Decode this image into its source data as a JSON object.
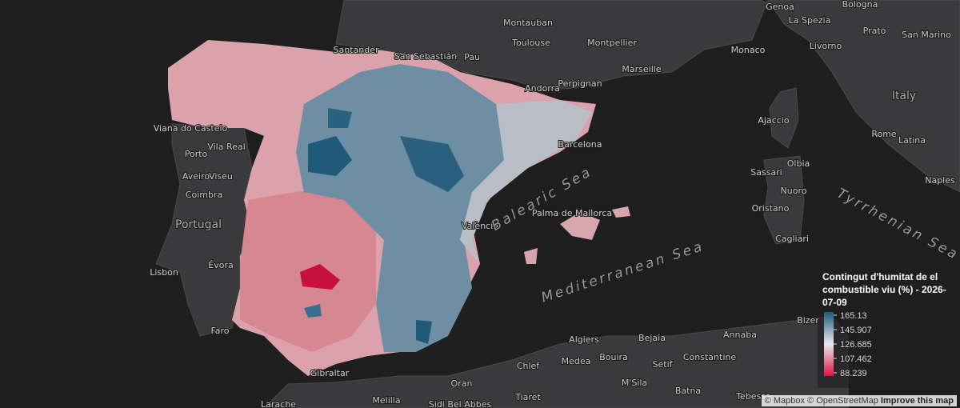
{
  "map": {
    "places": [
      "Genoa",
      "La Spezia",
      "Bologna",
      "Prato",
      "San Marino",
      "Livorno",
      "Monaco",
      "Montauban",
      "Toulouse",
      "Montpellier",
      "Marseille",
      "Perpignan",
      "Pau",
      "Santander",
      "San Sebastián",
      "Andorra",
      "Italy",
      "Ajaccio",
      "Rome",
      "Latina",
      "Barcelona",
      "Viana do Castelo",
      "Porto",
      "Vila Real",
      "Aveiro",
      "Viseu",
      "Coimbra",
      "Portugal",
      "Lisbon",
      "Évora",
      "Faro",
      "Gibraltar",
      "Sassari",
      "Olbia",
      "Nuoro",
      "Oristano",
      "Cagliari",
      "Naples",
      "Palma de Mallorca",
      "València",
      "Algiers",
      "Bejaia",
      "Annaba",
      "Bizer",
      "Medea",
      "Bouira",
      "Chlef",
      "Setif",
      "Constantine",
      "M'Sila",
      "Batna",
      "Oran",
      "Tiaret",
      "Tebessa",
      "Melilla",
      "Sidi Bel Abbes",
      "Larache"
    ],
    "seas": [
      "Balearic Sea",
      "Mediterranean Sea",
      "Tyrrhenian Sea"
    ]
  },
  "legend": {
    "title": "Contingut d'humitat de el combustible viu (%) - 2026-07-09",
    "ticks": [
      165.13,
      145.907,
      126.685,
      107.462,
      88.239
    ]
  },
  "attribution": {
    "mapbox": "© Mapbox",
    "osm": "© OpenStreetMap",
    "improve": "Improve this map"
  }
}
